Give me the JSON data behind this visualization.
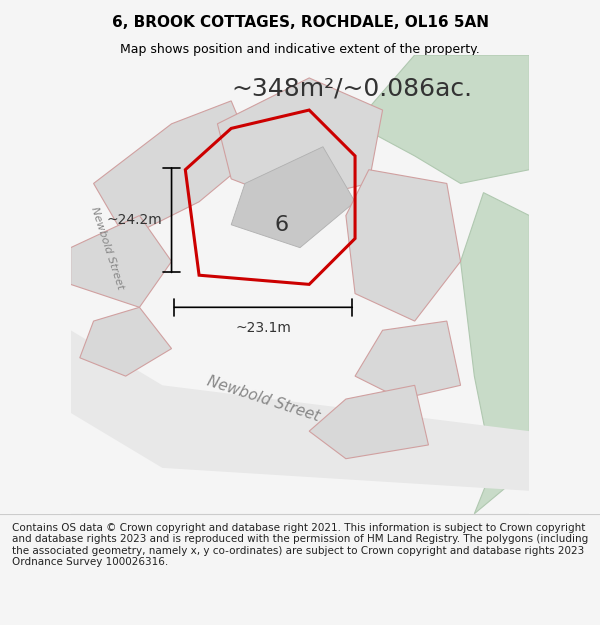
{
  "title_line1": "6, BROOK COTTAGES, ROCHDALE, OL16 5AN",
  "title_line2": "Map shows position and indicative extent of the property.",
  "area_text": "~348m²/~0.086ac.",
  "dim_vertical": "~24.2m",
  "dim_horizontal": "~23.1m",
  "label_number": "6",
  "street_label": "Newbold Street",
  "copyright_text": "Contains OS data © Crown copyright and database right 2021. This information is subject to Crown copyright and database rights 2023 and is reproduced with the permission of HM Land Registry. The polygons (including the associated geometry, namely x, y co-ordinates) are subject to Crown copyright and database rights 2023 Ordnance Survey 100026316.",
  "bg_color": "#f5f5f5",
  "map_bg": "#ffffff",
  "road_fill": "#e8e8e8",
  "road_stroke": "#e8a0a0",
  "plot_fill": "#d8d8d8",
  "plot_stroke": "#d0a0a0",
  "highlight_fill": "none",
  "highlight_stroke": "#cc0000",
  "green_fill": "#c8dbc8",
  "green_stroke": "#b0c8b0",
  "title_fontsize": 11,
  "subtitle_fontsize": 9,
  "area_fontsize": 18,
  "dim_fontsize": 10,
  "label_fontsize": 16,
  "street_fontsize": 11,
  "copyright_fontsize": 7.5
}
